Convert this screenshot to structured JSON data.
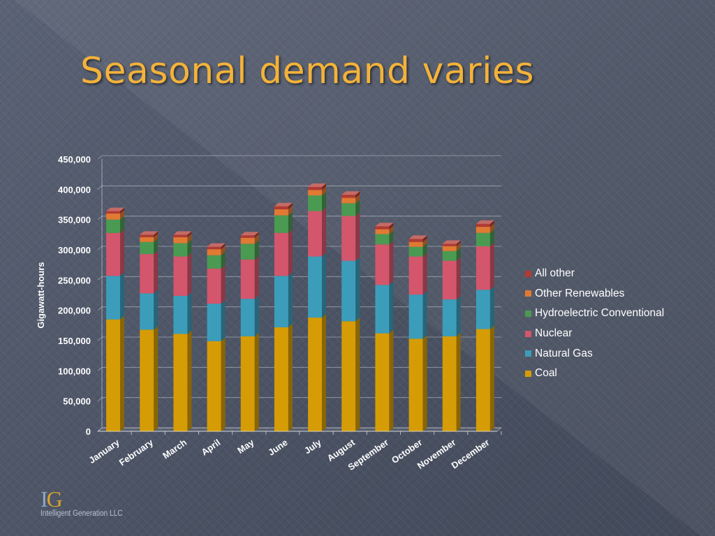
{
  "slide": {
    "title": "Seasonal demand varies",
    "logo": {
      "mark_i": "I",
      "mark_g": "G",
      "company": "Intelligent Generation LLC"
    }
  },
  "chart_data": {
    "type": "bar",
    "stacked": true,
    "title": "",
    "xlabel": "",
    "ylabel": "Gigawatt-hours",
    "ylim": [
      0,
      450000
    ],
    "yticks": [
      "0",
      "50,000",
      "100,000",
      "150,000",
      "200,000",
      "250,000",
      "300,000",
      "350,000",
      "400,000",
      "450,000"
    ],
    "grid": true,
    "legend_position": "right",
    "categories": [
      "January",
      "February",
      "March",
      "April",
      "May",
      "June",
      "July",
      "August",
      "September",
      "October",
      "November",
      "December"
    ],
    "series": [
      {
        "name": "Coal",
        "color": "#d59c05",
        "values": [
          185000,
          168000,
          161000,
          149000,
          157000,
          172000,
          188000,
          182000,
          162000,
          153000,
          157000,
          169000
        ]
      },
      {
        "name": "Natural Gas",
        "color": "#3c9dba",
        "values": [
          72000,
          60000,
          63000,
          62000,
          62000,
          85000,
          101000,
          100000,
          80000,
          73000,
          61000,
          65000
        ]
      },
      {
        "name": "Nuclear",
        "color": "#d4566c",
        "values": [
          71000,
          65000,
          65000,
          58000,
          65000,
          71000,
          75000,
          74000,
          67000,
          63000,
          64000,
          72000
        ]
      },
      {
        "name": "Hydroelectric Conventional",
        "color": "#4b9a52",
        "values": [
          22000,
          20000,
          22000,
          22000,
          26000,
          29000,
          26000,
          21000,
          17000,
          16000,
          16000,
          22000
        ]
      },
      {
        "name": "Other Renewables",
        "color": "#e07a33",
        "values": [
          10000,
          8000,
          10000,
          10000,
          10000,
          10000,
          9000,
          9000,
          8000,
          8000,
          8000,
          10000
        ]
      },
      {
        "name": "All other",
        "color": "#b23a33",
        "values": [
          4000,
          4000,
          4000,
          4000,
          4000,
          5000,
          5000,
          5000,
          5000,
          5000,
          4000,
          5000
        ]
      }
    ]
  }
}
